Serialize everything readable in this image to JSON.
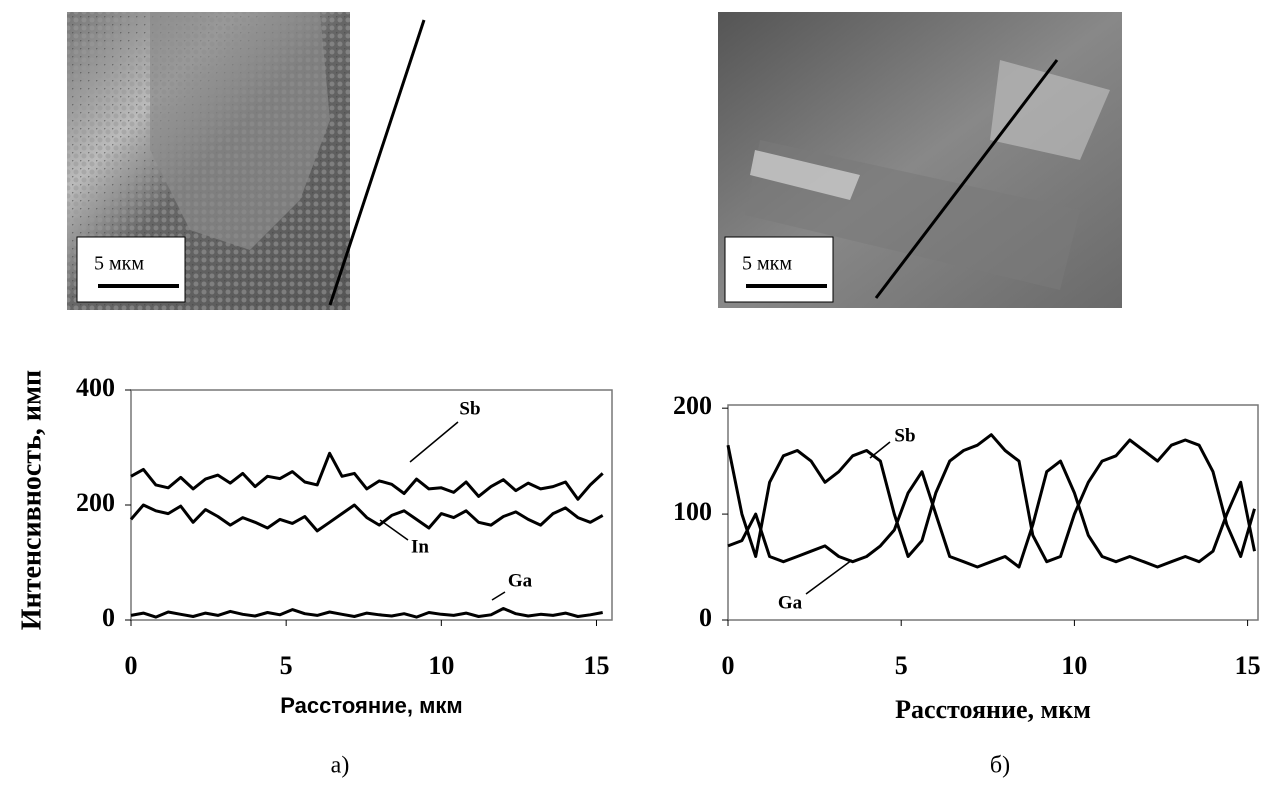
{
  "panels": [
    {
      "scale_label": "5 мкм",
      "caption": "а)"
    },
    {
      "scale_label": "5 мкм",
      "caption": "б)"
    }
  ],
  "chart_data": [
    {
      "type": "line",
      "y_label": "Интенсивность, имп",
      "x_label": "Расстояние, мкм",
      "xlim": [
        0,
        15.5
      ],
      "xticks": [
        0,
        5,
        10,
        15
      ],
      "ylim": [
        0,
        400
      ],
      "yticks": [
        0,
        200,
        400
      ],
      "x": [
        0,
        0.4,
        0.8,
        1.2,
        1.6,
        2,
        2.4,
        2.8,
        3.2,
        3.6,
        4,
        4.4,
        4.8,
        5.2,
        5.6,
        6,
        6.4,
        6.8,
        7.2,
        7.6,
        8,
        8.4,
        8.8,
        9.2,
        9.6,
        10,
        10.4,
        10.8,
        11.2,
        11.6,
        12,
        12.4,
        12.8,
        13.2,
        13.6,
        14,
        14.4,
        14.8,
        15.2
      ],
      "series": [
        {
          "name": "Sb",
          "color": "#000000",
          "values": [
            250,
            262,
            235,
            230,
            248,
            228,
            245,
            252,
            238,
            255,
            232,
            250,
            246,
            258,
            240,
            235,
            290,
            250,
            255,
            228,
            242,
            236,
            220,
            245,
            228,
            230,
            222,
            240,
            215,
            232,
            244,
            225,
            238,
            228,
            232,
            240,
            210,
            235,
            255
          ]
        },
        {
          "name": "In",
          "color": "#000000",
          "values": [
            175,
            200,
            190,
            185,
            198,
            170,
            192,
            180,
            165,
            178,
            170,
            160,
            175,
            168,
            180,
            155,
            170,
            185,
            200,
            178,
            165,
            182,
            190,
            175,
            160,
            185,
            178,
            190,
            170,
            165,
            180,
            188,
            175,
            165,
            185,
            195,
            178,
            170,
            182
          ]
        },
        {
          "name": "Ga",
          "color": "#000000",
          "values": [
            8,
            12,
            5,
            14,
            10,
            6,
            12,
            8,
            15,
            10,
            7,
            13,
            9,
            18,
            11,
            8,
            14,
            10,
            6,
            12,
            9,
            7,
            11,
            5,
            13,
            10,
            8,
            12,
            6,
            9,
            20,
            11,
            7,
            10,
            8,
            12,
            6,
            9,
            13
          ]
        }
      ]
    },
    {
      "type": "line",
      "x_label": "Расстояние, мкм",
      "xlim": [
        0,
        15.3
      ],
      "xticks": [
        0,
        5,
        10,
        15
      ],
      "ylim": [
        0,
        203
      ],
      "yticks": [
        0,
        100,
        200
      ],
      "x": [
        0,
        0.4,
        0.8,
        1.2,
        1.6,
        2,
        2.4,
        2.8,
        3.2,
        3.6,
        4,
        4.4,
        4.8,
        5.2,
        5.6,
        6,
        6.4,
        6.8,
        7.2,
        7.6,
        8,
        8.4,
        8.8,
        9.2,
        9.6,
        10,
        10.4,
        10.8,
        11.2,
        11.6,
        12,
        12.4,
        12.8,
        13.2,
        13.6,
        14,
        14.4,
        14.8,
        15.2
      ],
      "series": [
        {
          "name": "Sb",
          "color": "#000000",
          "values": [
            165,
            100,
            60,
            130,
            155,
            160,
            150,
            130,
            140,
            155,
            160,
            150,
            100,
            60,
            75,
            120,
            150,
            160,
            165,
            175,
            160,
            150,
            80,
            55,
            60,
            100,
            130,
            150,
            155,
            170,
            160,
            150,
            165,
            170,
            165,
            140,
            90,
            60,
            105
          ]
        },
        {
          "name": "Ga",
          "color": "#000000",
          "values": [
            70,
            75,
            100,
            60,
            55,
            60,
            65,
            70,
            60,
            55,
            60,
            70,
            85,
            120,
            140,
            100,
            60,
            55,
            50,
            55,
            60,
            50,
            90,
            140,
            150,
            120,
            80,
            60,
            55,
            60,
            55,
            50,
            55,
            60,
            55,
            65,
            100,
            130,
            65
          ]
        }
      ]
    }
  ]
}
